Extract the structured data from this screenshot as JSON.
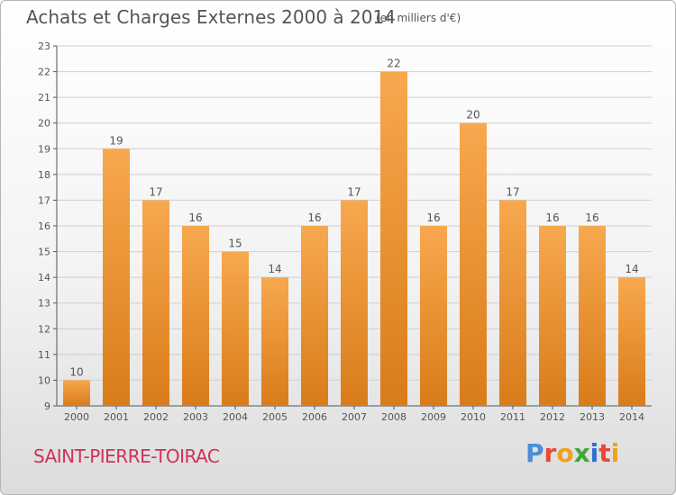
{
  "header": {
    "title": "Achats et Charges Externes 2000 à 2014",
    "subtitle": "(en milliers d'€)"
  },
  "footer": {
    "place": "SAINT-PIERRE-TOIRAC",
    "logo_text": "Proxiti",
    "logo_colors": [
      "#4a8fd6",
      "#e8483b",
      "#f0a21e",
      "#3ea83a",
      "#2f6fd0",
      "#e8483b",
      "#f0a21e"
    ]
  },
  "colors": {
    "bar_light": "#f7a84e",
    "bar_dark": "#d97c1a",
    "axis": "#555555",
    "grid": "#cfcfcf",
    "text": "#555555"
  },
  "chart_data": {
    "type": "bar",
    "title": "Achats et Charges Externes 2000 à 2014",
    "subtitle": "(en milliers d'€)",
    "categories": [
      "2000",
      "2001",
      "2002",
      "2003",
      "2004",
      "2005",
      "2006",
      "2007",
      "2008",
      "2009",
      "2010",
      "2011",
      "2012",
      "2013",
      "2014"
    ],
    "values": [
      10,
      19,
      17,
      16,
      15,
      14,
      16,
      17,
      22,
      16,
      20,
      17,
      16,
      16,
      14
    ],
    "ylim": [
      9,
      23
    ],
    "yticks": [
      9,
      10,
      11,
      12,
      13,
      14,
      15,
      16,
      17,
      18,
      19,
      20,
      21,
      22,
      23
    ],
    "grid": true,
    "legend": "none"
  }
}
